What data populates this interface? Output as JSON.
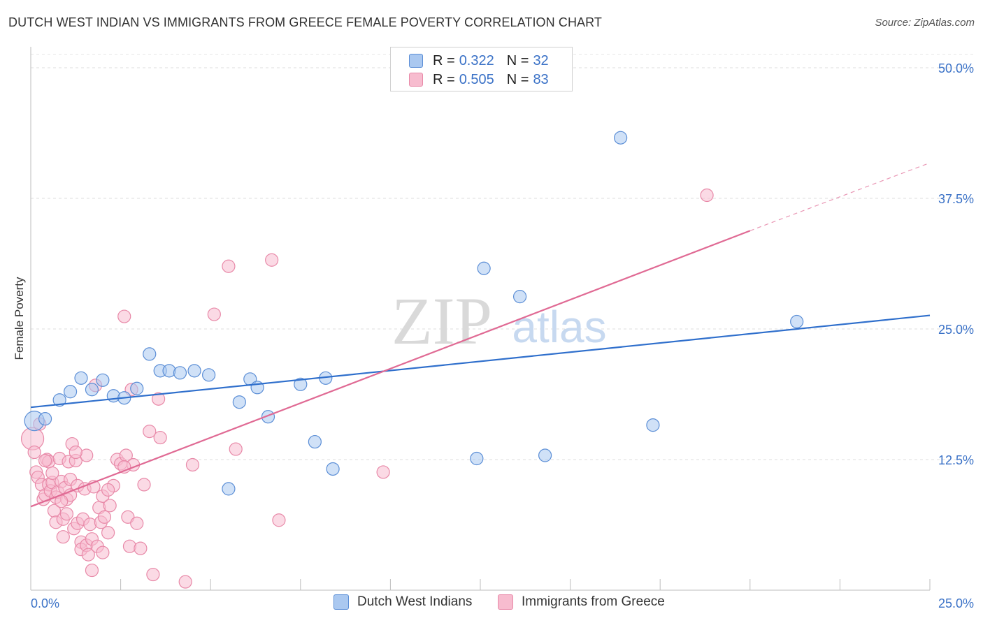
{
  "header": {
    "title": "DUTCH WEST INDIAN VS IMMIGRANTS FROM GREECE FEMALE POVERTY CORRELATION CHART",
    "source": "Source: ZipAtlas.com"
  },
  "legend": {
    "row1": {
      "r_label": "R =",
      "r_value": "0.322",
      "n_label": "N =",
      "n_value": "32"
    },
    "row2": {
      "r_label": "R =",
      "r_value": "0.505",
      "n_label": "N =",
      "n_value": "83"
    }
  },
  "bottom_legend": {
    "series1": "Dutch West Indians",
    "series2": "Immigrants from Greece"
  },
  "colors": {
    "blue_fill": "#aac8f0",
    "blue_stroke": "#5b8ed6",
    "blue_line": "#2f6fcc",
    "pink_fill": "#f7bccf",
    "pink_stroke": "#e889a8",
    "pink_line": "#e06a94",
    "axis_text": "#3b72c7",
    "watermark": "#d8d8d8"
  },
  "watermark": {
    "zip": "ZIP",
    "atlas": "atlas"
  },
  "chart_data": {
    "type": "scatter",
    "title": "DUTCH WEST INDIAN VS IMMIGRANTS FROM GREECE FEMALE POVERTY CORRELATION CHART",
    "xlabel": "",
    "ylabel": "Female Poverty",
    "xlim": [
      0,
      25
    ],
    "ylim": [
      0,
      50
    ],
    "x_tick_labels": [
      "0.0%",
      "25.0%"
    ],
    "y_ticks": [
      12.5,
      25.0,
      37.5,
      50.0
    ],
    "y_tick_labels": [
      "12.5%",
      "25.0%",
      "37.5%",
      "50.0%"
    ],
    "grid": true,
    "legend_position": "top-center",
    "series": [
      {
        "name": "Dutch West Indians",
        "R": 0.322,
        "N": 32,
        "trend": {
          "x0": 0,
          "y0": 17.5,
          "x1": 25,
          "y1": 26.3
        },
        "points": [
          [
            0.1,
            16.2
          ],
          [
            0.4,
            16.4
          ],
          [
            0.8,
            18.2
          ],
          [
            1.1,
            19.0
          ],
          [
            1.4,
            20.3
          ],
          [
            1.7,
            19.2
          ],
          [
            2.0,
            20.1
          ],
          [
            2.3,
            18.6
          ],
          [
            2.6,
            18.4
          ],
          [
            2.95,
            19.3
          ],
          [
            3.3,
            22.6
          ],
          [
            3.6,
            21.0
          ],
          [
            3.85,
            21.0
          ],
          [
            4.15,
            20.8
          ],
          [
            4.55,
            21.0
          ],
          [
            4.95,
            20.6
          ],
          [
            5.5,
            9.7
          ],
          [
            5.8,
            18.0
          ],
          [
            6.1,
            20.2
          ],
          [
            6.3,
            19.4
          ],
          [
            6.6,
            16.6
          ],
          [
            7.5,
            19.7
          ],
          [
            7.9,
            14.2
          ],
          [
            8.2,
            20.3
          ],
          [
            8.4,
            11.6
          ],
          [
            12.4,
            12.6
          ],
          [
            12.6,
            30.8
          ],
          [
            13.6,
            28.1
          ],
          [
            14.3,
            12.9
          ],
          [
            16.4,
            43.3
          ],
          [
            17.3,
            15.8
          ],
          [
            21.3,
            25.7
          ]
        ],
        "sizes": {
          "0": 14
        }
      },
      {
        "name": "Immigrants from Greece",
        "R": 0.505,
        "N": 83,
        "trend": {
          "x0": 0,
          "y0": 8.0,
          "x1": 20,
          "y1": 34.4,
          "dashed_x1": 25,
          "dashed_y1": 40.9
        },
        "points": [
          [
            0.05,
            14.5
          ],
          [
            0.1,
            13.2
          ],
          [
            0.15,
            11.3
          ],
          [
            0.2,
            10.8
          ],
          [
            0.25,
            15.9
          ],
          [
            0.3,
            10.1
          ],
          [
            0.35,
            8.7
          ],
          [
            0.4,
            9.1
          ],
          [
            0.45,
            12.5
          ],
          [
            0.5,
            12.3
          ],
          [
            0.5,
            10.1
          ],
          [
            0.55,
            9.5
          ],
          [
            0.6,
            10.3
          ],
          [
            0.65,
            7.6
          ],
          [
            0.7,
            8.9
          ],
          [
            0.7,
            6.5
          ],
          [
            0.75,
            9.4
          ],
          [
            0.8,
            12.6
          ],
          [
            0.85,
            10.4
          ],
          [
            0.9,
            6.8
          ],
          [
            0.9,
            5.1
          ],
          [
            0.95,
            9.8
          ],
          [
            1.0,
            7.3
          ],
          [
            1.0,
            8.7
          ],
          [
            1.05,
            12.3
          ],
          [
            1.1,
            10.6
          ],
          [
            1.1,
            9.1
          ],
          [
            1.15,
            14.0
          ],
          [
            1.2,
            5.9
          ],
          [
            1.25,
            12.4
          ],
          [
            1.3,
            10.0
          ],
          [
            1.3,
            6.4
          ],
          [
            1.4,
            4.6
          ],
          [
            1.4,
            3.9
          ],
          [
            1.45,
            6.8
          ],
          [
            1.5,
            9.7
          ],
          [
            1.55,
            4.3
          ],
          [
            1.55,
            12.9
          ],
          [
            1.6,
            3.4
          ],
          [
            1.65,
            6.3
          ],
          [
            1.7,
            1.9
          ],
          [
            1.7,
            4.9
          ],
          [
            1.75,
            9.9
          ],
          [
            1.8,
            19.6
          ],
          [
            1.85,
            4.2
          ],
          [
            1.9,
            7.9
          ],
          [
            1.95,
            6.5
          ],
          [
            2.0,
            3.6
          ],
          [
            2.0,
            9.0
          ],
          [
            2.05,
            7.0
          ],
          [
            2.15,
            5.5
          ],
          [
            2.2,
            8.1
          ],
          [
            2.3,
            10.0
          ],
          [
            2.4,
            12.5
          ],
          [
            2.5,
            12.1
          ],
          [
            2.6,
            26.2
          ],
          [
            2.65,
            12.9
          ],
          [
            2.7,
            7.0
          ],
          [
            2.75,
            4.2
          ],
          [
            2.8,
            19.2
          ],
          [
            2.85,
            12.0
          ],
          [
            2.95,
            6.4
          ],
          [
            3.05,
            4.0
          ],
          [
            3.15,
            10.1
          ],
          [
            3.3,
            15.2
          ],
          [
            3.4,
            1.5
          ],
          [
            3.6,
            14.6
          ],
          [
            3.55,
            18.3
          ],
          [
            4.3,
            0.8
          ],
          [
            4.5,
            12.0
          ],
          [
            5.1,
            26.4
          ],
          [
            5.5,
            31.0
          ],
          [
            5.7,
            13.5
          ],
          [
            6.7,
            31.6
          ],
          [
            6.9,
            6.7
          ],
          [
            9.8,
            11.3
          ],
          [
            18.8,
            37.8
          ],
          [
            0.4,
            12.4
          ],
          [
            0.6,
            11.2
          ],
          [
            0.85,
            8.5
          ],
          [
            1.25,
            13.2
          ],
          [
            2.15,
            9.6
          ],
          [
            2.6,
            11.8
          ]
        ],
        "sizes": {
          "0": 16
        }
      }
    ]
  }
}
